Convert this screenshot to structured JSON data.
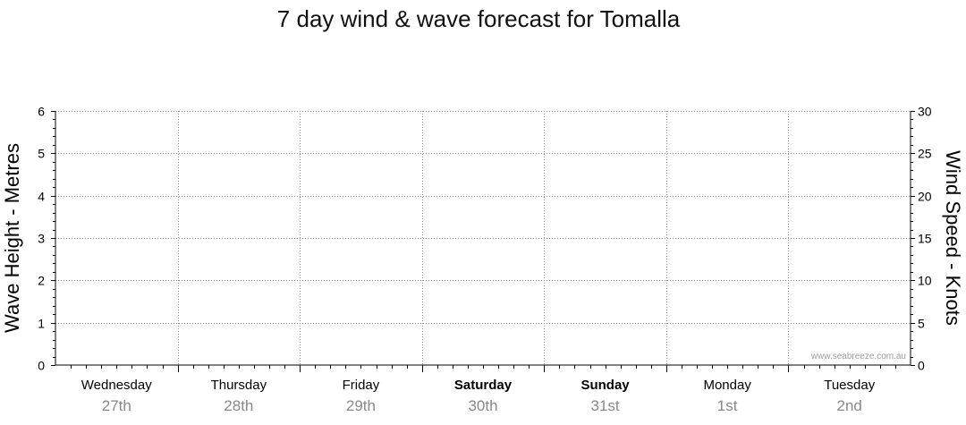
{
  "chart_data": {
    "type": "line",
    "title": "7 day wind & wave forecast for Tomalla",
    "ylabel_left": "Wave Height - Metres",
    "ylabel_right": "Wind Speed - Knots",
    "ylim_left": [
      0,
      6
    ],
    "ylim_right": [
      0,
      30
    ],
    "left_ticks": [
      "0",
      "1",
      "2",
      "3",
      "4",
      "5",
      "6"
    ],
    "right_ticks": [
      "0",
      "5",
      "10",
      "15",
      "20",
      "25",
      "30"
    ],
    "grid": true,
    "days": [
      {
        "name": "Wednesday",
        "date": "27th",
        "weekend": false
      },
      {
        "name": "Thursday",
        "date": "28th",
        "weekend": false
      },
      {
        "name": "Friday",
        "date": "29th",
        "weekend": false
      },
      {
        "name": "Saturday",
        "date": "30th",
        "weekend": true
      },
      {
        "name": "Sunday",
        "date": "31st",
        "weekend": true
      },
      {
        "name": "Monday",
        "date": "1st",
        "weekend": false
      },
      {
        "name": "Tuesday",
        "date": "2nd",
        "weekend": false
      }
    ],
    "series": [],
    "watermark": "www.seabreeze.com.au"
  },
  "colors": {
    "axis": "#000000",
    "grid": "#8c8c8c",
    "date_text": "#888888",
    "watermark": "#9a9a9a"
  }
}
